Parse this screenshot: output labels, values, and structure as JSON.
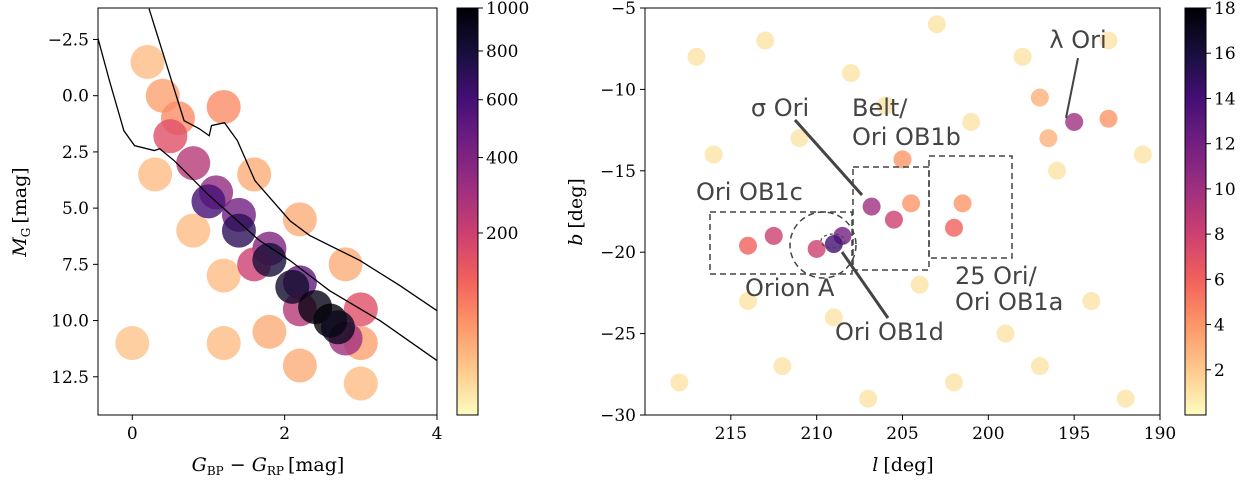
{
  "chart_data": [
    {
      "type": "heatmap",
      "xlabel": [
        "G",
        "BP",
        "−",
        "G",
        "RP",
        "[mag]"
      ],
      "ylabel": [
        "M",
        "G",
        "[mag]"
      ],
      "xlim": [
        -0.45,
        4
      ],
      "xticks": [
        0,
        2,
        4
      ],
      "ylim": [
        14.2,
        -3.9
      ],
      "yticks": [
        {
          "value": -2.5,
          "label": "−2.5"
        },
        {
          "value": 0,
          "label": "0.0"
        },
        {
          "value": 2.5,
          "label": "2.5"
        },
        {
          "value": 5,
          "label": "5.0"
        },
        {
          "value": 7.5,
          "label": "7.5"
        },
        {
          "value": 10,
          "label": "10.0"
        },
        {
          "value": 12.5,
          "label": "12.5"
        }
      ],
      "colormap": [
        "#fcfdbf",
        "#fec98d",
        "#fd9668",
        "#f1605d",
        "#cd4071",
        "#9e2f7f",
        "#721f81",
        "#440f76",
        "#180f3d",
        "#000004"
      ],
      "colorbar": {
        "lim": [
          0,
          1000
        ],
        "ticks": [
          200,
          400,
          600,
          800,
          1000
        ],
        "norm": "power",
        "gamma": 0.5
      },
      "cells": {
        "x": [
          0.2,
          0.4,
          0.6,
          1.2,
          0.3,
          0.8,
          1.2,
          1.8,
          2.2,
          3.0,
          3.0,
          2.8,
          2.2,
          1.6,
          0,
          1.2,
          0.5,
          0.8,
          1.1,
          1.4,
          1.8,
          2.2,
          2.8,
          2.2,
          1.6,
          3.0,
          1.0,
          1.4,
          1.8,
          2.1,
          2.4,
          2.6,
          2.7
        ],
        "y": [
          -1.5,
          0.0,
          1.0,
          0.5,
          3.5,
          6,
          8,
          10.5,
          12,
          11,
          12.8,
          7.5,
          5.5,
          3.5,
          11,
          11,
          1.8,
          3.0,
          4.3,
          5.3,
          6.8,
          8.3,
          10.8,
          9.5,
          7.5,
          9.5,
          4.7,
          6.0,
          7.3,
          8.5,
          9.4,
          10.0,
          10.3
        ],
        "values": [
          20,
          40,
          60,
          60,
          20,
          20,
          20,
          30,
          30,
          40,
          20,
          30,
          30,
          30,
          15,
          20,
          150,
          250,
          350,
          450,
          400,
          500,
          300,
          250,
          200,
          150,
          600,
          700,
          800,
          850,
          950,
          1000,
          900
        ]
      },
      "lines": [
        {
          "color": "#000000",
          "x": [
            0.22,
            0.68,
            0.88,
            1.01,
            1.04,
            1.21,
            1.38,
            1.61,
            2.07,
            2.33,
            2.99,
            3.51,
            4.0
          ],
          "y": [
            -3.87,
            1.11,
            1.47,
            1.78,
            1.33,
            1.2,
            2.0,
            3.78,
            5.56,
            6.22,
            7.33,
            8.44,
            9.56
          ]
        },
        {
          "color": "#000000",
          "x": [
            -0.46,
            -0.3,
            -0.11,
            0.03,
            0.29,
            0.36,
            0.55,
            1.01,
            1.67,
            2.07,
            2.59,
            3.25,
            4.0
          ],
          "y": [
            -2.67,
            -0.67,
            1.56,
            2.22,
            2.44,
            2.36,
            2.89,
            4.44,
            6.44,
            7.33,
            8.67,
            10.0,
            11.78
          ]
        }
      ]
    },
    {
      "type": "heatmap",
      "xlabel": [
        "l",
        "[deg]"
      ],
      "ylabel": [
        "b",
        "[deg]"
      ],
      "xlim": [
        220,
        190
      ],
      "xticks": [
        215,
        210,
        205,
        200,
        195,
        190
      ],
      "ylim": [
        -30,
        -5
      ],
      "yticks": [
        {
          "value": -30,
          "label": "−30"
        },
        {
          "value": -25,
          "label": "−25"
        },
        {
          "value": -20,
          "label": "−20"
        },
        {
          "value": -15,
          "label": "−15"
        },
        {
          "value": -10,
          "label": "−10"
        },
        {
          "value": -5,
          "label": "−5"
        }
      ],
      "colormap": [
        "#fcfdbf",
        "#fec98d",
        "#fd9668",
        "#f1605d",
        "#cd4071",
        "#9e2f7f",
        "#721f81",
        "#440f76",
        "#180f3d",
        "#000004"
      ],
      "colorbar": {
        "lim": [
          0,
          18
        ],
        "ticks": [
          2,
          4,
          6,
          8,
          10,
          12,
          14,
          16,
          18
        ],
        "norm": "linear"
      },
      "cells": {
        "x": [
          217,
          213,
          208,
          203,
          198,
          193,
          216,
          211,
          206,
          201,
          196,
          191,
          214,
          209,
          204,
          199,
          194,
          218,
          212,
          207,
          202,
          197,
          192,
          205,
          201.5,
          204.5,
          197,
          196.5,
          193,
          214,
          212.5,
          210,
          202,
          205.5,
          208.5,
          206.8,
          195,
          209
        ],
        "y": [
          -8,
          -7,
          -9,
          -6,
          -8,
          -7,
          -14,
          -13,
          -11,
          -12,
          -15,
          -14,
          -23,
          -24,
          -22,
          -25,
          -23,
          -28,
          -27,
          -29,
          -28,
          -27,
          -29,
          -14.3,
          -17,
          -17,
          -10.5,
          -13,
          -11.8,
          -19.6,
          -19,
          -19.8,
          -18.5,
          -18,
          -19,
          -17.2,
          -12,
          -19.5
        ],
        "values": [
          1,
          1,
          1,
          1,
          1,
          1,
          1,
          1,
          1,
          1,
          1,
          1,
          1,
          1,
          1,
          1,
          1,
          1,
          1,
          1,
          1,
          1,
          1,
          4,
          4,
          4,
          3,
          3,
          4,
          6,
          8,
          8,
          6,
          8,
          12,
          10,
          10,
          14
        ]
      },
      "annotations": {
        "lambda_ori": "λ Ori",
        "sigma_ori": "σ Ori",
        "belt": [
          "Belt/",
          "Ori OB1b"
        ],
        "ob1c": "Ori OB1c",
        "orion_a": "Orion A",
        "ob1d": "Ori OB1d",
        "ob1a": [
          "25 Ori/",
          "Ori OB1a"
        ]
      }
    }
  ]
}
